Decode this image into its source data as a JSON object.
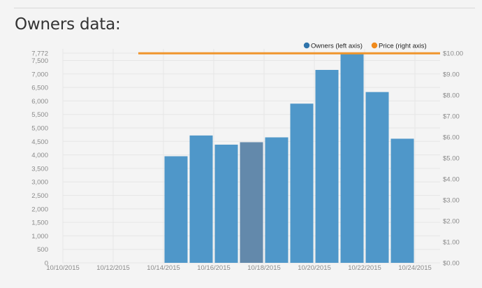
{
  "page": {
    "heading": "Owners data:"
  },
  "colors": {
    "owners": "#4f97c9",
    "owners_highlight": "#6389ab",
    "price": "#f0952c",
    "owners_legend_dot": "#2f74ab",
    "price_legend_dot": "#f08a1c",
    "grid": "#e6e6e6",
    "tick_text": "#8a8a8a"
  },
  "chart_data": {
    "type": "bar",
    "x_ticks": [
      "10/10/2015",
      "10/12/2015",
      "10/14/2015",
      "10/16/2015",
      "10/18/2015",
      "10/20/2015",
      "10/22/2015",
      "10/24/2015"
    ],
    "y_left_ticks": [
      "0",
      "500",
      "1,000",
      "1,500",
      "2,000",
      "2,500",
      "3,000",
      "3,500",
      "4,000",
      "4,500",
      "5,000",
      "5,500",
      "6,000",
      "6,500",
      "7,000",
      "7,500",
      "7,772"
    ],
    "y_right_ticks": [
      "$0.00",
      "$1.00",
      "$2.00",
      "$3.00",
      "$4.00",
      "$5.00",
      "$6.00",
      "$7.00",
      "$8.00",
      "$9.00",
      "$10.00"
    ],
    "ylim_left": [
      0,
      7772
    ],
    "ylim_right": [
      0,
      10
    ],
    "highlighted_date": "10/18/2015",
    "series": [
      {
        "name": "Owners (left axis)",
        "kind": "bar",
        "axis": "left",
        "points": [
          {
            "date": "10/15/2015",
            "value": 3950
          },
          {
            "date": "10/16/2015",
            "value": 4720
          },
          {
            "date": "10/17/2015",
            "value": 4380
          },
          {
            "date": "10/18/2015",
            "value": 4470
          },
          {
            "date": "10/19/2015",
            "value": 4650
          },
          {
            "date": "10/20/2015",
            "value": 5900
          },
          {
            "date": "10/21/2015",
            "value": 7150
          },
          {
            "date": "10/22/2015",
            "value": 7772
          },
          {
            "date": "10/23/2015",
            "value": 6330
          },
          {
            "date": "10/24/2015",
            "value": 4600
          }
        ]
      },
      {
        "name": "Price (right axis)",
        "kind": "line",
        "axis": "right",
        "points": [
          {
            "date": "10/13/2015",
            "value": 9.99
          },
          {
            "date": "10/25/2015",
            "value": 9.99
          }
        ]
      }
    ]
  }
}
